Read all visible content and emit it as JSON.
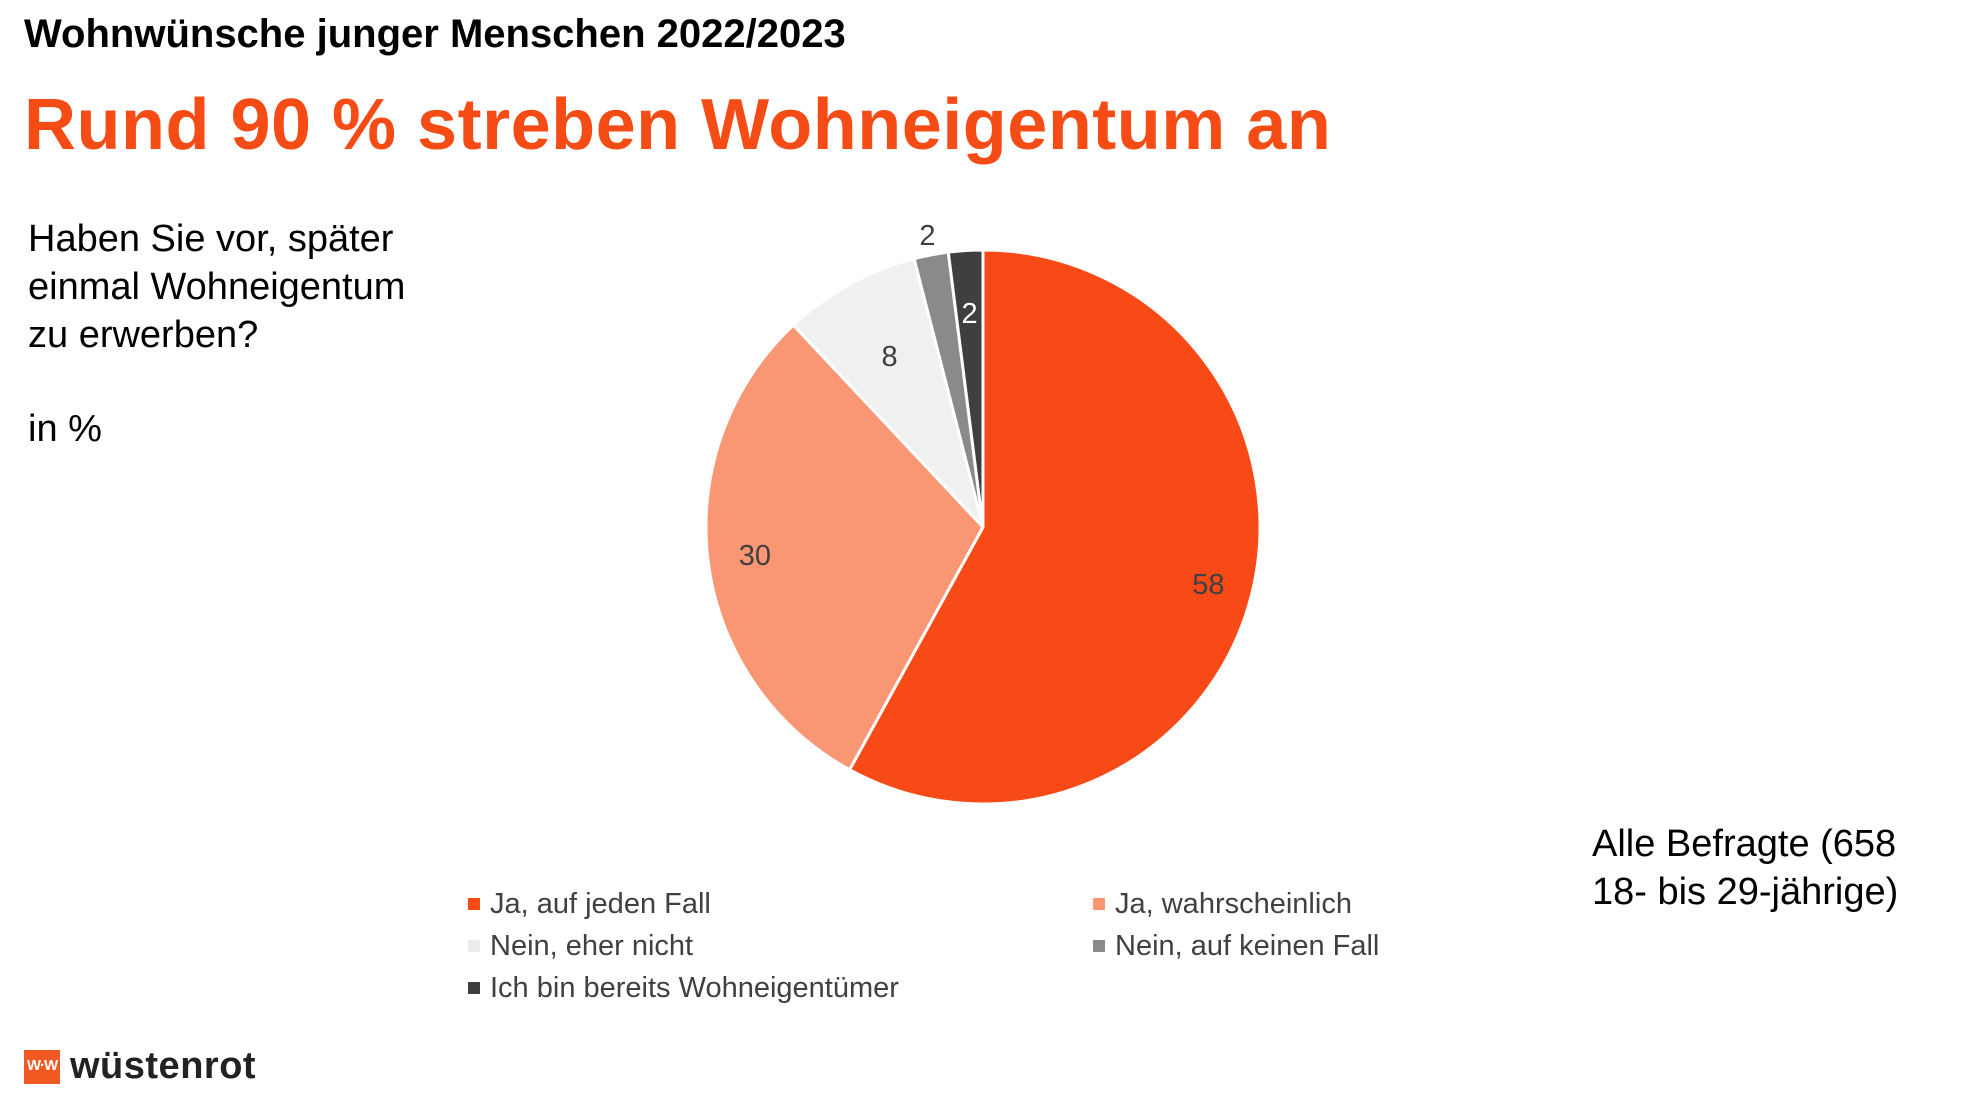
{
  "header": {
    "kicker": "Wohnwünsche junger Menschen 2022/2023",
    "headline": "Rund 90 % streben Wohneigentum an"
  },
  "question": "Haben Sie vor, später einmal Wohneigentum zu erwerben?",
  "unit_label": "in %",
  "base_note": "Alle Befragte (658 18- bis 29-jährige)",
  "logo": {
    "text": "wüstenrot",
    "mark_text": "W·W"
  },
  "colors": {
    "accent": "#f54b14",
    "logo": "#f05a22"
  },
  "chart_data": {
    "type": "pie",
    "title": "",
    "start_angle_deg": 0,
    "direction": "clockwise",
    "slices": [
      {
        "label": "Ja, auf jeden Fall",
        "value": 58,
        "color": "#f74a16",
        "label_color": "#404040"
      },
      {
        "label": "Ja, wahrscheinlich",
        "value": 30,
        "color": "#f99674",
        "label_color": "#404040"
      },
      {
        "label": "Nein, eher nicht",
        "value": 8,
        "color": "#f0f0f0",
        "label_color": "#404040"
      },
      {
        "label": "Nein, auf keinen Fall",
        "value": 2,
        "color": "#8a8a8a",
        "label_color": "#404040"
      },
      {
        "label": "Ich bin bereits Wohneigentümer",
        "value": 2,
        "color": "#3f3f3f",
        "label_color": "#ffffff"
      }
    ],
    "legend_position": "bottom"
  }
}
